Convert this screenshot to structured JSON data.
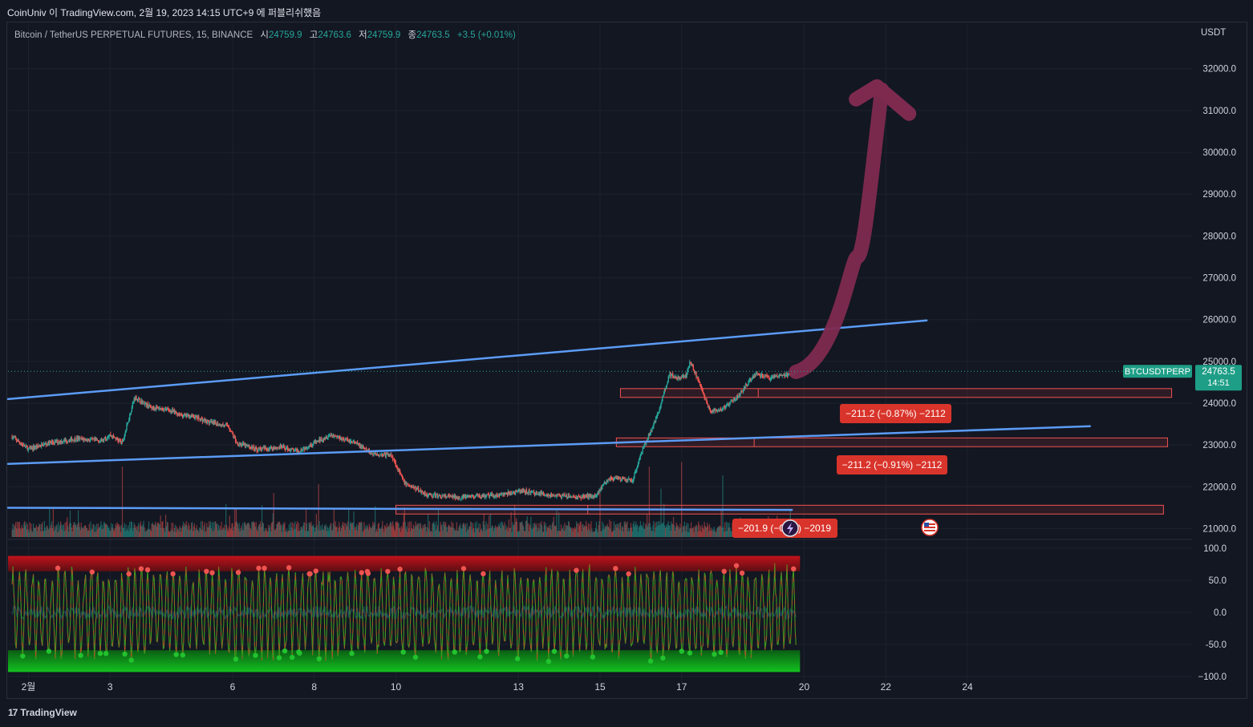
{
  "header": {
    "publish_line": "CoinUniv 이 TradingView.com, 2월 19, 2023 14:15 UTC+9 에 퍼블리쉬했음"
  },
  "legend": {
    "symbol": "Bitcoin / TetherUS PERPETUAL FUTURES, 15, BINANCE",
    "open_label": "시",
    "open": "24759.9",
    "high_label": "고",
    "high": "24763.6",
    "low_label": "저",
    "low": "24759.9",
    "close_label": "종",
    "close": "24763.5",
    "change": "+3.5 (+0.01%)"
  },
  "price_scale": {
    "currency": "USDT",
    "ticks": [
      "32000.0",
      "31000.0",
      "30000.0",
      "29000.0",
      "28000.0",
      "27000.0",
      "26000.0",
      "25000.0",
      "24000.0",
      "23000.0",
      "22000.0",
      "21000.0"
    ],
    "symbol_tag": "BTCUSDTPERP",
    "last_price": "24763.5",
    "countdown": "14:51"
  },
  "osc_scale": {
    "ticks": [
      "100.0",
      "50.0",
      "0.0",
      "-50.0",
      "−100.0"
    ]
  },
  "time_axis": {
    "labels": [
      "2월",
      "3",
      "6",
      "8",
      "10",
      "13",
      "15",
      "17",
      "20",
      "22",
      "24"
    ]
  },
  "measure_labels": [
    "−211.2 (−0.87%) −2112",
    "−211.2 (−0.91%) −2112",
    "−201.9 (−0",
    ") −2019"
  ],
  "footer": {
    "brand": "TradingView",
    "logo": "17"
  },
  "colors": {
    "background": "#131722",
    "up": "#26a69a",
    "down": "#ef5350",
    "trendline": "#5b9cf6",
    "arrow": "#7e2a4f",
    "measure": "#d9342b",
    "overbought": "#a01818",
    "oversold": "#0ea01a",
    "osc_line": "#1f4a5c"
  },
  "chart_data": [
    {
      "type": "candlestick",
      "title": "",
      "xlabel": "",
      "ylabel": "USDT",
      "ylim": [
        20800,
        32800
      ],
      "x_range": [
        0.5,
        29.5
      ],
      "price_path": [
        [
          0.6,
          23200
        ],
        [
          1.0,
          22900
        ],
        [
          1.5,
          23050
        ],
        [
          2.2,
          23150
        ],
        [
          2.8,
          23100
        ],
        [
          3.0,
          23250
        ],
        [
          3.3,
          23050
        ],
        [
          3.6,
          24150
        ],
        [
          4.0,
          23900
        ],
        [
          4.4,
          23850
        ],
        [
          4.8,
          23700
        ],
        [
          5.0,
          23700
        ],
        [
          5.4,
          23550
        ],
        [
          5.9,
          23450
        ],
        [
          6.1,
          23050
        ],
        [
          6.6,
          22900
        ],
        [
          7.2,
          22950
        ],
        [
          7.6,
          22850
        ],
        [
          8.0,
          23050
        ],
        [
          8.4,
          23250
        ],
        [
          9.0,
          23050
        ],
        [
          9.4,
          22800
        ],
        [
          9.9,
          22750
        ],
        [
          10.2,
          22100
        ],
        [
          10.8,
          21800
        ],
        [
          11.5,
          21750
        ],
        [
          12.5,
          21800
        ],
        [
          13.1,
          21900
        ],
        [
          13.8,
          21800
        ],
        [
          14.4,
          21750
        ],
        [
          14.9,
          21800
        ],
        [
          15.2,
          22200
        ],
        [
          15.8,
          22150
        ],
        [
          16.0,
          22800
        ],
        [
          16.4,
          23700
        ],
        [
          16.7,
          24700
        ],
        [
          16.9,
          24600
        ],
        [
          17.1,
          24650
        ],
        [
          17.2,
          25000
        ],
        [
          17.3,
          24800
        ],
        [
          17.5,
          24300
        ],
        [
          17.7,
          23800
        ],
        [
          18.0,
          23850
        ],
        [
          18.4,
          24200
        ],
        [
          18.8,
          24700
        ],
        [
          19.2,
          24600
        ],
        [
          19.7,
          24700
        ],
        [
          19.8,
          24763.5
        ]
      ],
      "volume_spikes": [
        [
          3.3,
          0.8
        ],
        [
          7.0,
          0.5
        ],
        [
          8.1,
          0.6
        ],
        [
          9.5,
          0.35
        ],
        [
          10.2,
          0.25
        ],
        [
          15.0,
          0.5
        ],
        [
          16.2,
          0.8
        ],
        [
          16.5,
          0.55
        ],
        [
          17.0,
          0.85
        ],
        [
          18.0,
          0.7
        ]
      ],
      "trendlines": [
        {
          "x": [
            0.5,
            23.0
          ],
          "y": [
            24100,
            25980
          ]
        },
        {
          "x": [
            0.5,
            27.0
          ],
          "y": [
            22550,
            23450
          ]
        },
        {
          "x": [
            0.5,
            19.7
          ],
          "y": [
            21500,
            21450
          ]
        }
      ],
      "zones": [
        {
          "x": [
            15.5,
            29.0
          ],
          "y": [
            24140,
            24350
          ]
        },
        {
          "x": [
            15.4,
            28.9
          ],
          "y": [
            22960,
            23170
          ]
        },
        {
          "x": [
            10.0,
            28.8
          ],
          "y": [
            21350,
            21560
          ]
        }
      ],
      "projection_arrow": {
        "x": [
          19.8,
          20.8,
          21.3,
          21.6,
          21.9
        ],
        "y": [
          24750,
          25400,
          27500,
          29800,
          31500
        ]
      }
    },
    {
      "type": "line",
      "title": "",
      "ylim": [
        -110,
        110
      ],
      "overbought_band": [
        64,
        88
      ],
      "oversold_band": [
        -93,
        -59
      ],
      "series": [
        {
          "values_generated": "oscillator"
        }
      ]
    }
  ]
}
